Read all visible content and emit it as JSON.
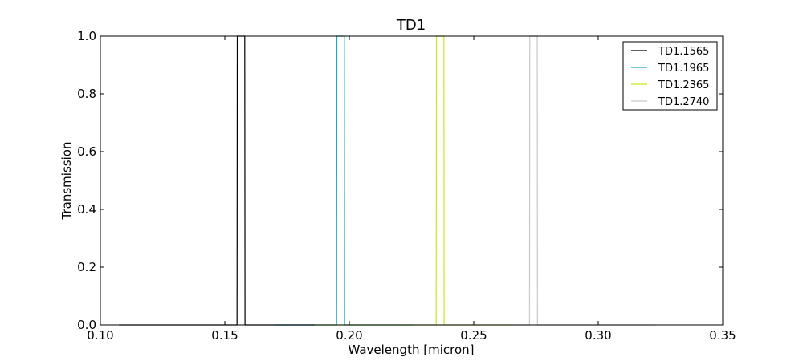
{
  "chart_data": {
    "type": "line",
    "title": "TD1",
    "xlabel": "Wavelength [micron]",
    "ylabel": "Transmission",
    "xlim": [
      0.1,
      0.35
    ],
    "ylim": [
      0.0,
      1.0
    ],
    "xticks": [
      "0.10",
      "0.15",
      "0.20",
      "0.25",
      "0.30",
      "0.35"
    ],
    "yticks": [
      "0.0",
      "0.2",
      "0.4",
      "0.6",
      "0.8",
      "1.0"
    ],
    "xtick_values": [
      0.1,
      0.15,
      0.2,
      0.25,
      0.3,
      0.35
    ],
    "ytick_values": [
      0.0,
      0.2,
      0.4,
      0.6,
      0.8,
      1.0
    ],
    "grid": false,
    "legend_position": "top-right",
    "series": [
      {
        "name": "TD1.1565",
        "color": "#000000",
        "x": [
          0.1075,
          0.15,
          0.1549,
          0.155,
          0.158,
          0.1581,
          0.17,
          0.186
        ],
        "y": [
          0.0,
          0.0,
          0.0,
          1.0,
          1.0,
          0.0,
          0.0,
          0.0
        ]
      },
      {
        "name": "TD1.1965",
        "color": "#17a9c9",
        "x": [
          0.17,
          0.19,
          0.1949,
          0.195,
          0.198,
          0.1981,
          0.21,
          0.226
        ],
        "y": [
          0.0,
          0.0,
          0.0,
          1.0,
          1.0,
          0.0,
          0.0,
          0.0
        ]
      },
      {
        "name": "TD1.2365",
        "color": "#c8e81a",
        "x": [
          0.186,
          0.23,
          0.2349,
          0.235,
          0.238,
          0.2381,
          0.25,
          0.266
        ],
        "y": [
          0.0,
          0.0,
          0.0,
          1.0,
          1.0,
          0.0,
          0.0,
          0.0
        ]
      },
      {
        "name": "TD1.2740",
        "color": "#c8c8c8",
        "x": [
          0.226,
          0.268,
          0.2724,
          0.2725,
          0.2755,
          0.2756,
          0.3,
          0.323
        ],
        "y": [
          0.0,
          0.0,
          0.0,
          1.0,
          1.0,
          0.0,
          0.0,
          0.0
        ]
      }
    ]
  }
}
